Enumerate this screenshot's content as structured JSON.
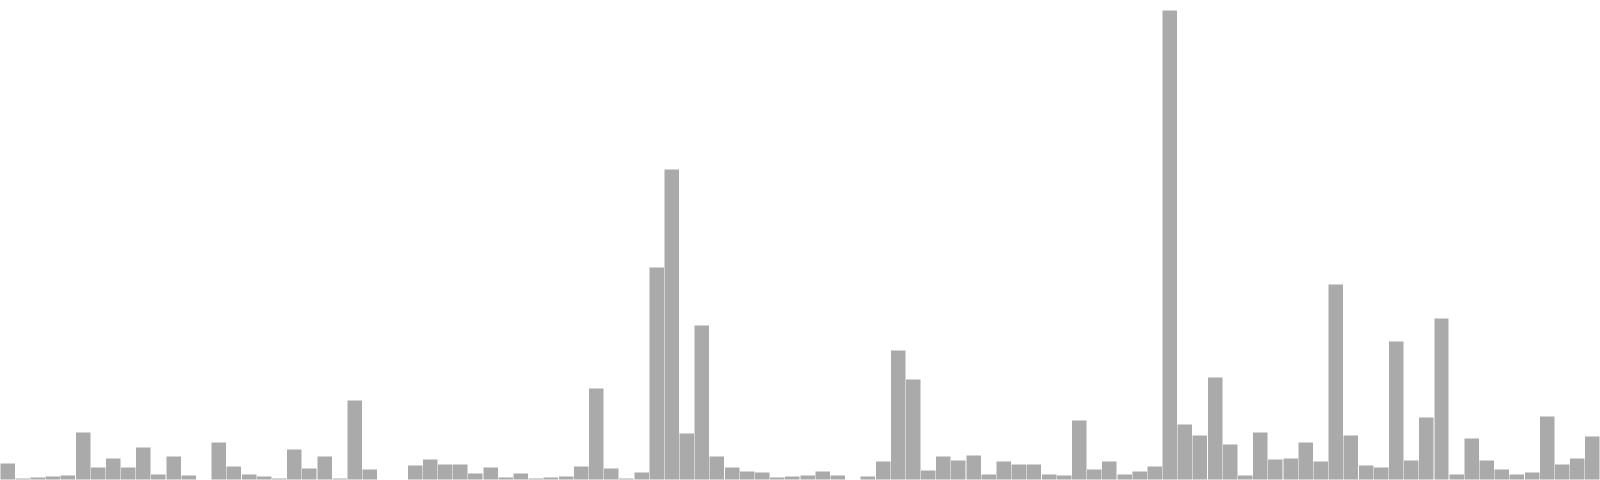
{
  "chart_data": {
    "type": "bar",
    "title": "",
    "xlabel": "",
    "ylabel": "",
    "grid": false,
    "legend": "none",
    "ylim": [
      0,
      480
    ],
    "bar_color": "#aaaaaa",
    "bar_edge_color": "#ffffff",
    "values": [
      17,
      2,
      3,
      4,
      5,
      48,
      13,
      22,
      13,
      33,
      6,
      24,
      5,
      0,
      38,
      14,
      6,
      4,
      2,
      31,
      12,
      24,
      2,
      80,
      11,
      1,
      0,
      15,
      21,
      16,
      16,
      7,
      13,
      3,
      7,
      2,
      3,
      4,
      14,
      92,
      12,
      2,
      8,
      213,
      311,
      47,
      155,
      24,
      13,
      9,
      8,
      3,
      4,
      5,
      9,
      5,
      0,
      4,
      19,
      130,
      101,
      10,
      24,
      20,
      25,
      6,
      19,
      16,
      16,
      6,
      5,
      60,
      11,
      19,
      6,
      9,
      14,
      470,
      56,
      45,
      103,
      36,
      5,
      48,
      21,
      22,
      38,
      19,
      196,
      45,
      15,
      13,
      139,
      20,
      63,
      162,
      6,
      42,
      20,
      11,
      6,
      8,
      64,
      16,
      22,
      44
    ]
  }
}
